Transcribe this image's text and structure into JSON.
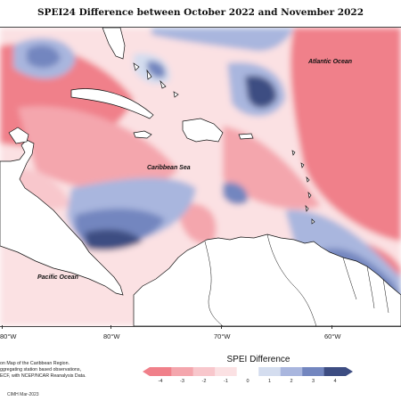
{
  "title": "SPEI24 Difference between October 2022 and November 2022",
  "labels": {
    "atlantic": "Atlantic Ocean",
    "caribbean": "Caribbean Sea",
    "pacific": "Pacific Ocean"
  },
  "longitudes": [
    "80°W",
    "80°W",
    "70°W",
    "60°W"
  ],
  "note_lines": [
    "on Map of the Caribbean Region.",
    "ggregating station based observations,",
    "ECF, with NCEP/NCAR Reanalysis Data."
  ],
  "credit": "CIMH Mar-2023",
  "legend": {
    "title": "SPEI Difference",
    "ticks": [
      "-4",
      "-3",
      "-2",
      "-1",
      "0",
      "1",
      "2",
      "3",
      "4"
    ],
    "colors": [
      "#f0808a",
      "#f4a6ad",
      "#f8c7cc",
      "#fbe1e3",
      "#ffffff",
      "#d4ddef",
      "#a9b6de",
      "#7386bf",
      "#3d4d82"
    ]
  }
}
